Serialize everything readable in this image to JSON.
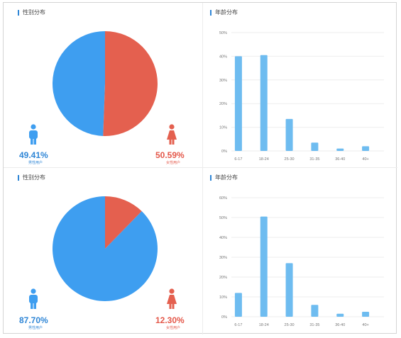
{
  "colors": {
    "male": "#3e9ef0",
    "female": "#e4604f",
    "bar": "#6ebcf0",
    "grid": "#eeeeee",
    "axis_text": "#777777"
  },
  "icons": {
    "male": "male-user-icon",
    "female": "female-user-icon"
  },
  "panels": [
    {
      "gender": {
        "title": "性别分布",
        "male_pct": "49.41%",
        "male_label": "男性用户",
        "female_pct": "50.59%",
        "female_label": "女性用户"
      },
      "age": {
        "title": "年龄分布"
      }
    },
    {
      "gender": {
        "title": "性别分布",
        "male_pct": "87.70%",
        "male_label": "男性用户",
        "female_pct": "12.30%",
        "female_label": "女性用户"
      },
      "age": {
        "title": "年龄分布"
      }
    }
  ],
  "chart_data": [
    {
      "type": "pie",
      "categories": [
        "男性用户",
        "女性用户"
      ],
      "values": [
        49.41,
        50.59
      ]
    },
    {
      "type": "bar",
      "categories": [
        "6-17",
        "18-24",
        "25-30",
        "31-35",
        "36-40",
        "40+"
      ],
      "values": [
        40,
        40.5,
        13.5,
        3.5,
        1,
        2
      ],
      "ylim": [
        0,
        50
      ],
      "yticks": [
        "0%",
        "10%",
        "20%",
        "30%",
        "40%",
        "50%"
      ],
      "grid": true
    },
    {
      "type": "pie",
      "categories": [
        "男性用户",
        "女性用户"
      ],
      "values": [
        87.7,
        12.3
      ]
    },
    {
      "type": "bar",
      "categories": [
        "6-17",
        "18-24",
        "25-30",
        "31-35",
        "36-40",
        "40+"
      ],
      "values": [
        12,
        50.5,
        27,
        6,
        1.5,
        2.5
      ],
      "ylim": [
        0,
        60
      ],
      "yticks": [
        "0%",
        "10%",
        "20%",
        "30%",
        "40%",
        "50%",
        "60%"
      ],
      "grid": true
    }
  ]
}
